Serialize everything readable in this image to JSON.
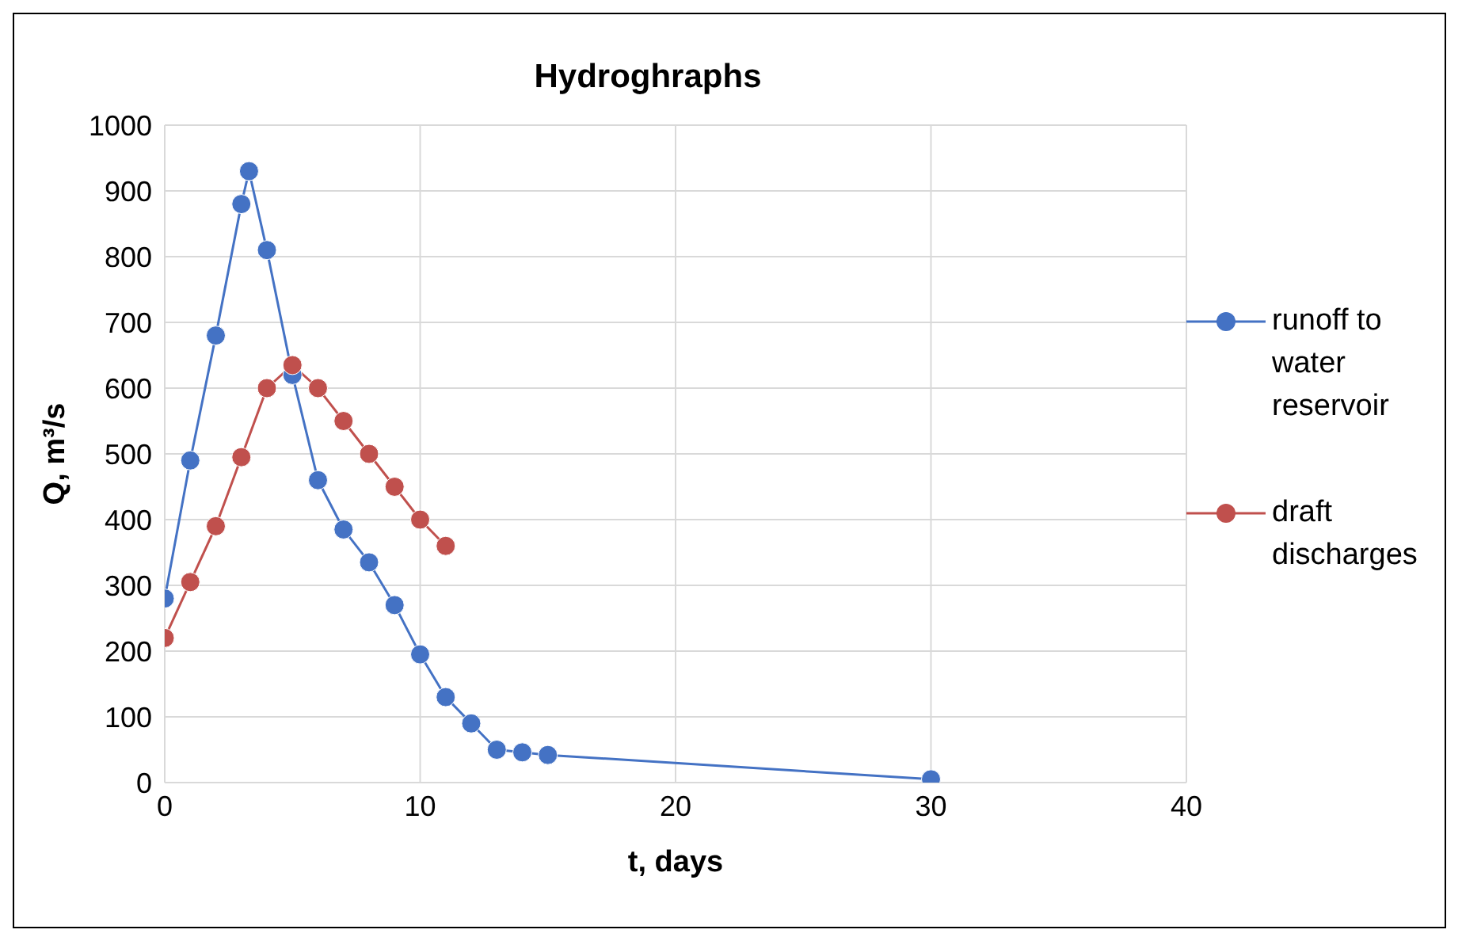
{
  "chart_data": {
    "type": "line",
    "title": "Hydroghraphs",
    "xlabel": "t,  days",
    "ylabel": "Q, m³/s",
    "xlim": [
      0,
      40
    ],
    "xticks": [
      0,
      10,
      20,
      30,
      40
    ],
    "ylim": [
      0,
      1000
    ],
    "yticks": [
      0,
      100,
      200,
      300,
      400,
      500,
      600,
      700,
      800,
      900,
      1000
    ],
    "grid": true,
    "legend": "right",
    "marker": "circle",
    "line_style": "solid",
    "series": [
      {
        "name": "runoff to water reservoir",
        "color": "#4472c4",
        "x": [
          0,
          1,
          2,
          3,
          3.3,
          4,
          5,
          6,
          7,
          8,
          9,
          10,
          11,
          12,
          13,
          14,
          15,
          30
        ],
        "values": [
          280,
          490,
          680,
          880,
          930,
          810,
          620,
          460,
          385,
          335,
          270,
          195,
          130,
          90,
          50,
          46,
          42,
          5
        ]
      },
      {
        "name": "draft discharges",
        "color": "#c0504d",
        "x": [
          0,
          1,
          2,
          3,
          4,
          5,
          6,
          7,
          8,
          9,
          10,
          11
        ],
        "values": [
          220,
          305,
          390,
          495,
          600,
          635,
          600,
          550,
          500,
          450,
          400,
          360
        ]
      }
    ]
  }
}
